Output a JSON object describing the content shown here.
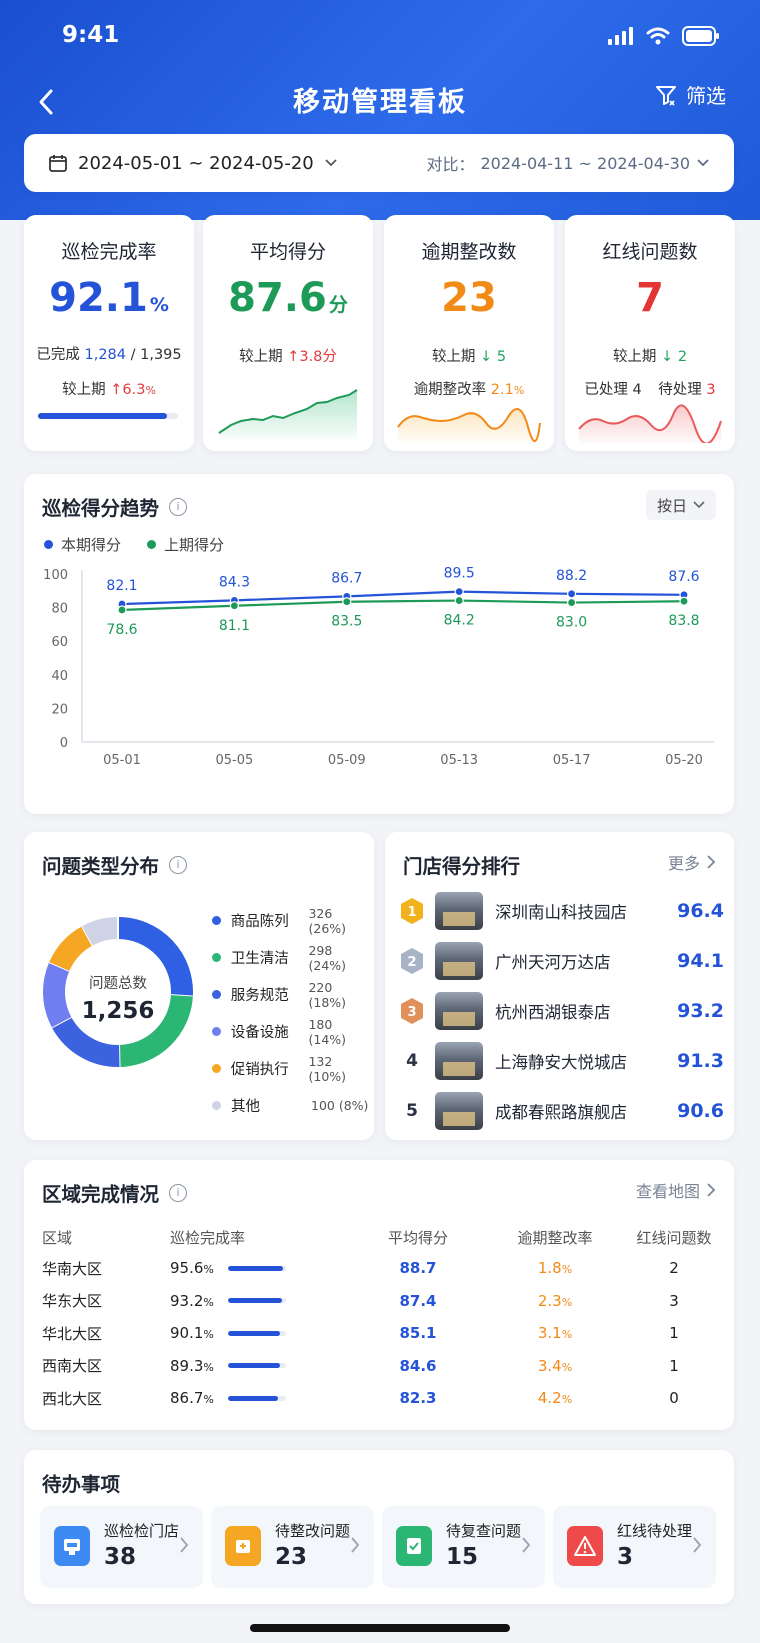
{
  "status_bar": {
    "time": "9:41"
  },
  "nav": {
    "title": "移动管理看板",
    "filter_label": "筛选"
  },
  "date_range": {
    "current": "2024-05-01 ~ 2024-05-20",
    "compare_label": "对比：",
    "compare": "2024-04-11 ~ 2024-04-30"
  },
  "kpis": {
    "completion": {
      "title": "巡检完成率",
      "value": "92.1",
      "unit": "%",
      "done_label": "已完成",
      "done": "1,284",
      "sep": "/",
      "total": "1,395",
      "cmp_label": "较上期",
      "cmp_arrow": "↑",
      "cmp_value": "6.3",
      "cmp_unit": "%",
      "progress": 0.921
    },
    "avg_score": {
      "title": "平均得分",
      "value": "87.6",
      "unit": "分",
      "cmp_label": "较上期",
      "cmp_arrow": "↑",
      "cmp_value": "3.8分"
    },
    "overdue": {
      "title": "逾期整改数",
      "value": "23",
      "cmp_label": "较上期",
      "cmp_arrow": "↓",
      "cmp_value": "5",
      "rate_label": "逾期整改率",
      "rate_value": "2.1",
      "rate_unit": "%"
    },
    "redline": {
      "title": "红线问题数",
      "value": "7",
      "cmp_label": "较上期",
      "cmp_arrow": "↓",
      "cmp_value": "2",
      "handled_label": "已处理",
      "handled": "4",
      "pending_label": "待处理",
      "pending": "3"
    }
  },
  "trend": {
    "title": "巡检得分趋势",
    "info": "i",
    "granularity": "按日",
    "legend_current": "本期得分",
    "legend_prev": "上期得分"
  },
  "chart_data": {
    "type": "line",
    "x": [
      "05-01",
      "05-05",
      "05-09",
      "05-13",
      "05-17",
      "05-20"
    ],
    "series": [
      {
        "name": "本期得分",
        "values": [
          82.1,
          84.3,
          86.7,
          89.5,
          88.2,
          87.6
        ],
        "color": "#2453d8"
      },
      {
        "name": "上期得分",
        "values": [
          78.6,
          81.1,
          83.5,
          84.2,
          83.0,
          83.8
        ],
        "color": "#1d9a58"
      }
    ],
    "y_ticks": [
      0,
      20,
      40,
      60,
      80,
      100
    ],
    "ylim": [
      0,
      100
    ],
    "grid": false,
    "legend": "top-left"
  },
  "issues": {
    "title": "问题类型分布",
    "info": "i",
    "center_label": "问题总数",
    "total": "1,256",
    "items": [
      {
        "name": "商品陈列",
        "count": "326 (26%)",
        "value": 326,
        "color": "#2f5fe3"
      },
      {
        "name": "卫生清洁",
        "count": "298 (24%)",
        "value": 298,
        "color": "#2bb673"
      },
      {
        "name": "服务规范",
        "count": "220 (18%)",
        "value": 220,
        "color": "#3c62e0"
      },
      {
        "name": "设备设施",
        "count": "180 (14%)",
        "value": 180,
        "color": "#6f7ff0"
      },
      {
        "name": "促销执行",
        "count": "132 (10%)",
        "value": 132,
        "color": "#f5a623"
      },
      {
        "name": "其他",
        "count": "100 (8%)",
        "value": 100,
        "color": "#cfd3e6"
      }
    ]
  },
  "ranking": {
    "title": "门店得分排行",
    "more": "更多",
    "items": [
      {
        "rank": "1",
        "name": "深圳南山科技园店",
        "score": "96.4"
      },
      {
        "rank": "2",
        "name": "广州天河万达店",
        "score": "94.1"
      },
      {
        "rank": "3",
        "name": "杭州西湖银泰店",
        "score": "93.2"
      },
      {
        "rank": "4",
        "name": "上海静安大悦城店",
        "score": "91.3"
      },
      {
        "rank": "5",
        "name": "成都春熙路旗舰店",
        "score": "90.6"
      }
    ]
  },
  "regions": {
    "title": "区域完成情况",
    "info": "i",
    "map_link": "查看地图",
    "headers": [
      "区域",
      "巡检完成率",
      "平均得分",
      "逾期整改率",
      "红线问题数"
    ],
    "rows": [
      {
        "name": "华南大区",
        "rate": "95.6",
        "rate_v": 0.956,
        "score": "88.7",
        "overdue": "1.8",
        "red": "2"
      },
      {
        "name": "华东大区",
        "rate": "93.2",
        "rate_v": 0.932,
        "score": "87.4",
        "overdue": "2.3",
        "red": "3"
      },
      {
        "name": "华北大区",
        "rate": "90.1",
        "rate_v": 0.901,
        "score": "85.1",
        "overdue": "3.1",
        "red": "1"
      },
      {
        "name": "西南大区",
        "rate": "89.3",
        "rate_v": 0.893,
        "score": "84.6",
        "overdue": "3.4",
        "red": "1"
      },
      {
        "name": "西北大区",
        "rate": "86.7",
        "rate_v": 0.867,
        "score": "82.3",
        "overdue": "4.2",
        "red": "0"
      }
    ],
    "pct": "%"
  },
  "todo": {
    "title": "待办事项",
    "items": [
      {
        "label": "巡检检门店",
        "count": "38",
        "color": "#3d8bf2",
        "icon": "store-icon"
      },
      {
        "label": "待整改问题",
        "count": "23",
        "color": "#f5a623",
        "icon": "wrench-icon"
      },
      {
        "label": "待复查问题",
        "count": "15",
        "color": "#2bb673",
        "icon": "clipboard-check-icon"
      },
      {
        "label": "红线待处理",
        "count": "3",
        "color": "#ee4a4a",
        "icon": "warning-icon"
      }
    ]
  }
}
